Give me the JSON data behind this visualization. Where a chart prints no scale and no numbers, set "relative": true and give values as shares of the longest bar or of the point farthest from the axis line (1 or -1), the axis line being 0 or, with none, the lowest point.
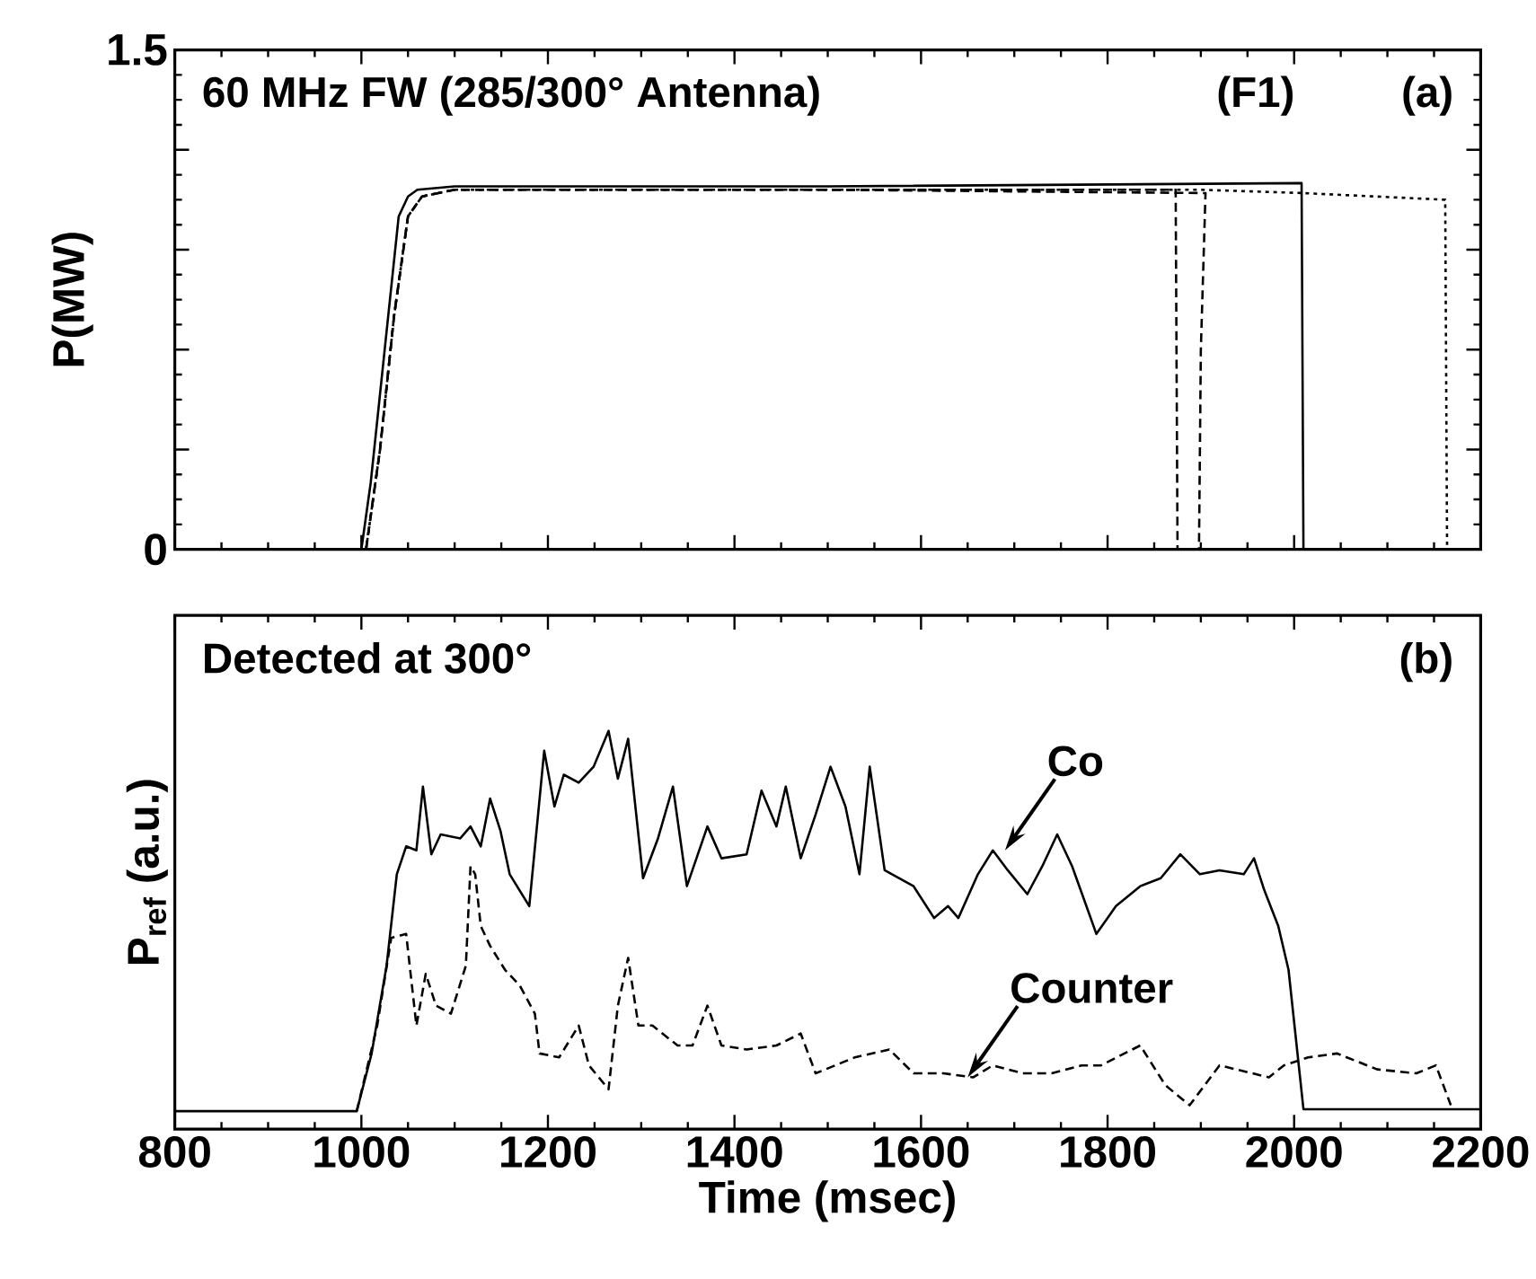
{
  "chart_data": [
    {
      "type": "line",
      "title": "60 MHz FW (285/300° Antenna)",
      "ylabel": "P(MW)",
      "annotations": [
        "(F1)",
        "(a)"
      ],
      "xlim": [
        800,
        2200
      ],
      "ylim": [
        0,
        1.5
      ],
      "xticks": [
        {
          "value": 800,
          "label": null
        },
        {
          "value": 1000,
          "label": null
        },
        {
          "value": 1200,
          "label": null
        },
        {
          "value": 1400,
          "label": null
        },
        {
          "value": 1600,
          "label": null
        },
        {
          "value": 1800,
          "label": null
        },
        {
          "value": 2000,
          "label": null
        },
        {
          "value": 2200,
          "label": null
        }
      ],
      "yticks": [
        0,
        {
          "value": 0.3,
          "label": null
        },
        {
          "value": 0.6,
          "label": null
        },
        {
          "value": 0.9,
          "label": null
        },
        {
          "value": 1.2,
          "label": null
        },
        1.5
      ],
      "tick_labels": "y",
      "series": [
        {
          "color": "#000000",
          "line_style": "solid",
          "x": [
            800,
            1000,
            1010,
            1025,
            1040,
            1050,
            1060,
            1100,
            1500,
            2008,
            2010,
            2200
          ],
          "values": [
            0,
            0,
            0.2,
            0.6,
            1.0,
            1.06,
            1.08,
            1.09,
            1.09,
            1.1,
            0,
            0
          ]
        },
        {
          "color": "#000000",
          "line_style": "dashed",
          "x": [
            1005,
            1020,
            1035,
            1050,
            1065,
            1100,
            1500,
            1873,
            1875
          ],
          "values": [
            0,
            0.3,
            0.7,
            1.0,
            1.06,
            1.08,
            1.08,
            1.08,
            0
          ]
        },
        {
          "color": "#000000",
          "line_style": "dashed",
          "x": [
            1005,
            1020,
            1035,
            1050,
            1065,
            1100,
            1500,
            1905,
            1900,
            1898
          ],
          "values": [
            0,
            0.3,
            0.7,
            1.0,
            1.06,
            1.08,
            1.08,
            1.07,
            0.6,
            0
          ]
        },
        {
          "color": "#000000",
          "line_style": "dotted",
          "x": [
            1005,
            1020,
            1035,
            1050,
            1065,
            1100,
            1500,
            1900,
            2010,
            2162,
            2164
          ],
          "values": [
            0,
            0.3,
            0.7,
            1.0,
            1.06,
            1.08,
            1.08,
            1.08,
            1.07,
            1.05,
            0
          ]
        }
      ]
    },
    {
      "type": "line",
      "title": "Detected at 300°",
      "ylabel": "P$_{ref}$ (a.u.)",
      "xlabel": "Time (msec)",
      "relative": true,
      "tick_labels": "x",
      "annotations": [
        {
          "text": "Co",
          "x": 1690,
          "y": 0.7
        },
        {
          "text": "Counter",
          "x": 1650,
          "y": 0.13
        },
        "(b)"
      ],
      "xlim": [
        800,
        2200
      ],
      "xticks": [
        800,
        1000,
        1200,
        1400,
        1600,
        1800,
        2000,
        2200
      ],
      "series": [
        {
          "color": "#000000",
          "line_style": "solid",
          "x": [
            800,
            995,
            1011,
            1027,
            1038,
            1048,
            1059,
            1066,
            1075,
            1085,
            1106,
            1117,
            1128,
            1138,
            1149,
            1159,
            1180,
            1196,
            1207,
            1217,
            1233,
            1249,
            1265,
            1275,
            1286,
            1302,
            1318,
            1334,
            1349,
            1371,
            1386,
            1413,
            1429,
            1445,
            1455,
            1471,
            1487,
            1503,
            1519,
            1534,
            1545,
            1561,
            1592,
            1614,
            1629,
            1640,
            1661,
            1677,
            1693,
            1714,
            1730,
            1746,
            1762,
            1788,
            1809,
            1835,
            1857,
            1878,
            1899,
            1920,
            1946,
            1957,
            1968,
            1983,
            1994,
            2010,
            2200
          ],
          "values": [
            0.045,
            0.045,
            0.19,
            0.41,
            0.64,
            0.71,
            0.7,
            0.86,
            0.69,
            0.74,
            0.73,
            0.76,
            0.71,
            0.83,
            0.75,
            0.64,
            0.56,
            0.95,
            0.81,
            0.89,
            0.87,
            0.91,
            1.0,
            0.88,
            0.98,
            0.63,
            0.73,
            0.86,
            0.61,
            0.76,
            0.68,
            0.69,
            0.85,
            0.76,
            0.86,
            0.68,
            0.79,
            0.91,
            0.81,
            0.64,
            0.91,
            0.65,
            0.61,
            0.53,
            0.56,
            0.53,
            0.64,
            0.7,
            0.65,
            0.59,
            0.66,
            0.74,
            0.66,
            0.49,
            0.56,
            0.61,
            0.63,
            0.69,
            0.64,
            0.65,
            0.64,
            0.68,
            0.6,
            0.51,
            0.4,
            0.05,
            0.05
          ]
        },
        {
          "color": "#000000",
          "line_style": "dashed",
          "x": [
            995,
            1017,
            1032,
            1048,
            1059,
            1069,
            1080,
            1096,
            1112,
            1117,
            1122,
            1128,
            1138,
            1154,
            1170,
            1186,
            1191,
            1212,
            1233,
            1244,
            1265,
            1275,
            1286,
            1297,
            1312,
            1339,
            1355,
            1371,
            1386,
            1413,
            1445,
            1471,
            1487,
            1508,
            1529,
            1566,
            1592,
            1624,
            1656,
            1677,
            1709,
            1740,
            1772,
            1793,
            1835,
            1862,
            1888,
            1920,
            1973,
            1989,
            2015,
            2046,
            2089,
            2131,
            2152,
            2168
          ],
          "values": [
            0.045,
            0.26,
            0.48,
            0.49,
            0.26,
            0.39,
            0.31,
            0.29,
            0.41,
            0.66,
            0.64,
            0.51,
            0.46,
            0.4,
            0.36,
            0.29,
            0.19,
            0.18,
            0.26,
            0.16,
            0.1,
            0.31,
            0.43,
            0.26,
            0.26,
            0.21,
            0.21,
            0.31,
            0.21,
            0.2,
            0.21,
            0.24,
            0.14,
            0.16,
            0.18,
            0.2,
            0.14,
            0.14,
            0.13,
            0.16,
            0.14,
            0.14,
            0.16,
            0.16,
            0.21,
            0.11,
            0.06,
            0.16,
            0.13,
            0.16,
            0.18,
            0.19,
            0.15,
            0.14,
            0.16,
            0.06
          ]
        }
      ]
    }
  ]
}
